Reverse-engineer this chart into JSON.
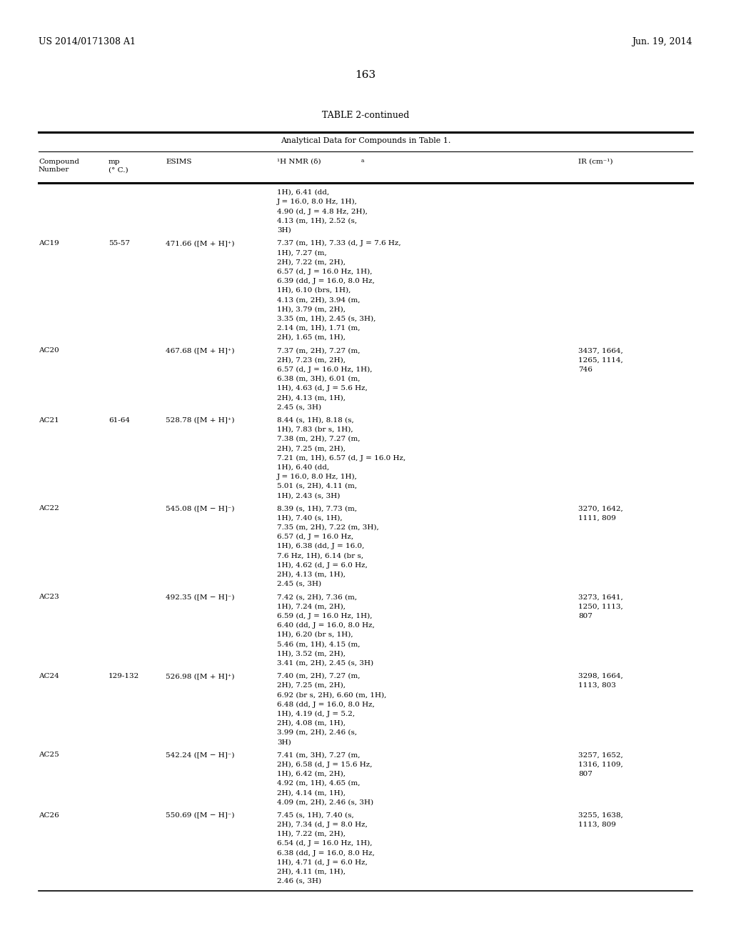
{
  "header_left": "US 2014/0171308 A1",
  "header_right": "Jun. 19, 2014",
  "page_number": "163",
  "table_title": "TABLE 2-continued",
  "table_subtitle": "Analytical Data for Compounds in Table 1.",
  "rows": [
    {
      "compound": "",
      "mp": "",
      "esims": "",
      "nmr": "1H), 6.41 (dd,\nJ = 16.0, 8.0 Hz, 1H),\n4.90 (d, J = 4.8 Hz, 2H),\n4.13 (m, 1H), 2.52 (s,\n3H)",
      "ir": ""
    },
    {
      "compound": "AC19",
      "mp": "55-57",
      "esims": "471.66 ([M + H]⁺)",
      "nmr": "7.37 (m, 1H), 7.33 (d, J = 7.6 Hz,\n1H), 7.27 (m,\n2H), 7.22 (m, 2H),\n6.57 (d, J = 16.0 Hz, 1H),\n6.39 (dd, J = 16.0, 8.0 Hz,\n1H), 6.10 (brs, 1H),\n4.13 (m, 2H), 3.94 (m,\n1H), 3.79 (m, 2H),\n3.35 (m, 1H), 2.45 (s, 3H),\n2.14 (m, 1H), 1.71 (m,\n2H), 1.65 (m, 1H),",
      "ir": ""
    },
    {
      "compound": "AC20",
      "mp": "",
      "esims": "467.68 ([M + H]⁺)",
      "nmr": "7.37 (m, 2H), 7.27 (m,\n2H), 7.23 (m, 2H),\n6.57 (d, J = 16.0 Hz, 1H),\n6.38 (m, 3H), 6.01 (m,\n1H), 4.63 (d, J = 5.6 Hz,\n2H), 4.13 (m, 1H),\n2.45 (s, 3H)",
      "ir": "3437, 1664,\n1265, 1114,\n746"
    },
    {
      "compound": "AC21",
      "mp": "61-64",
      "esims": "528.78 ([M + H]⁺)",
      "nmr": "8.44 (s, 1H), 8.18 (s,\n1H), 7.83 (br s, 1H),\n7.38 (m, 2H), 7.27 (m,\n2H), 7.25 (m, 2H),\n7.21 (m, 1H), 6.57 (d, J = 16.0 Hz,\n1H), 6.40 (dd,\nJ = 16.0, 8.0 Hz, 1H),\n5.01 (s, 2H), 4.11 (m,\n1H), 2.43 (s, 3H)",
      "ir": ""
    },
    {
      "compound": "AC22",
      "mp": "",
      "esims": "545.08 ([M − H]⁻)",
      "nmr": "8.39 (s, 1H), 7.73 (m,\n1H), 7.40 (s, 1H),\n7.35 (m, 2H), 7.22 (m, 3H),\n6.57 (d, J = 16.0 Hz,\n1H), 6.38 (dd, J = 16.0,\n7.6 Hz, 1H), 6.14 (br s,\n1H), 4.62 (d, J = 6.0 Hz,\n2H), 4.13 (m, 1H),\n2.45 (s, 3H)",
      "ir": "3270, 1642,\n1111, 809"
    },
    {
      "compound": "AC23",
      "mp": "",
      "esims": "492.35 ([M − H]⁻)",
      "nmr": "7.42 (s, 2H), 7.36 (m,\n1H), 7.24 (m, 2H),\n6.59 (d, J = 16.0 Hz, 1H),\n6.40 (dd, J = 16.0, 8.0 Hz,\n1H), 6.20 (br s, 1H),\n5.46 (m, 1H), 4.15 (m,\n1H), 3.52 (m, 2H),\n3.41 (m, 2H), 2.45 (s, 3H)",
      "ir": "3273, 1641,\n1250, 1113,\n807"
    },
    {
      "compound": "AC24",
      "mp": "129-132",
      "esims": "526.98 ([M + H]⁺)",
      "nmr": "7.40 (m, 2H), 7.27 (m,\n2H), 7.25 (m, 2H),\n6.92 (br s, 2H), 6.60 (m, 1H),\n6.48 (dd, J = 16.0, 8.0 Hz,\n1H), 4.19 (d, J = 5.2,\n2H), 4.08 (m, 1H),\n3.99 (m, 2H), 2.46 (s,\n3H)",
      "ir": "3298, 1664,\n1113, 803"
    },
    {
      "compound": "AC25",
      "mp": "",
      "esims": "542.24 ([M − H]⁻)",
      "nmr": "7.41 (m, 3H), 7.27 (m,\n2H), 6.58 (d, J = 15.6 Hz,\n1H), 6.42 (m, 2H),\n4.92 (m, 1H), 4.65 (m,\n2H), 4.14 (m, 1H),\n4.09 (m, 2H), 2.46 (s, 3H)",
      "ir": "3257, 1652,\n1316, 1109,\n807"
    },
    {
      "compound": "AC26",
      "mp": "",
      "esims": "550.69 ([M − H]⁻)",
      "nmr": "7.45 (s, 1H), 7.40 (s,\n2H), 7.34 (d, J = 8.0 Hz,\n1H), 7.22 (m, 2H),\n6.54 (d, J = 16.0 Hz, 1H),\n6.38 (dd, J = 16.0, 8.0 Hz,\n1H), 4.71 (d, J = 6.0 Hz,\n2H), 4.11 (m, 1H),\n2.46 (s, 3H)",
      "ir": "3255, 1638,\n1113, 809"
    }
  ],
  "background_color": "#ffffff",
  "text_color": "#000000"
}
